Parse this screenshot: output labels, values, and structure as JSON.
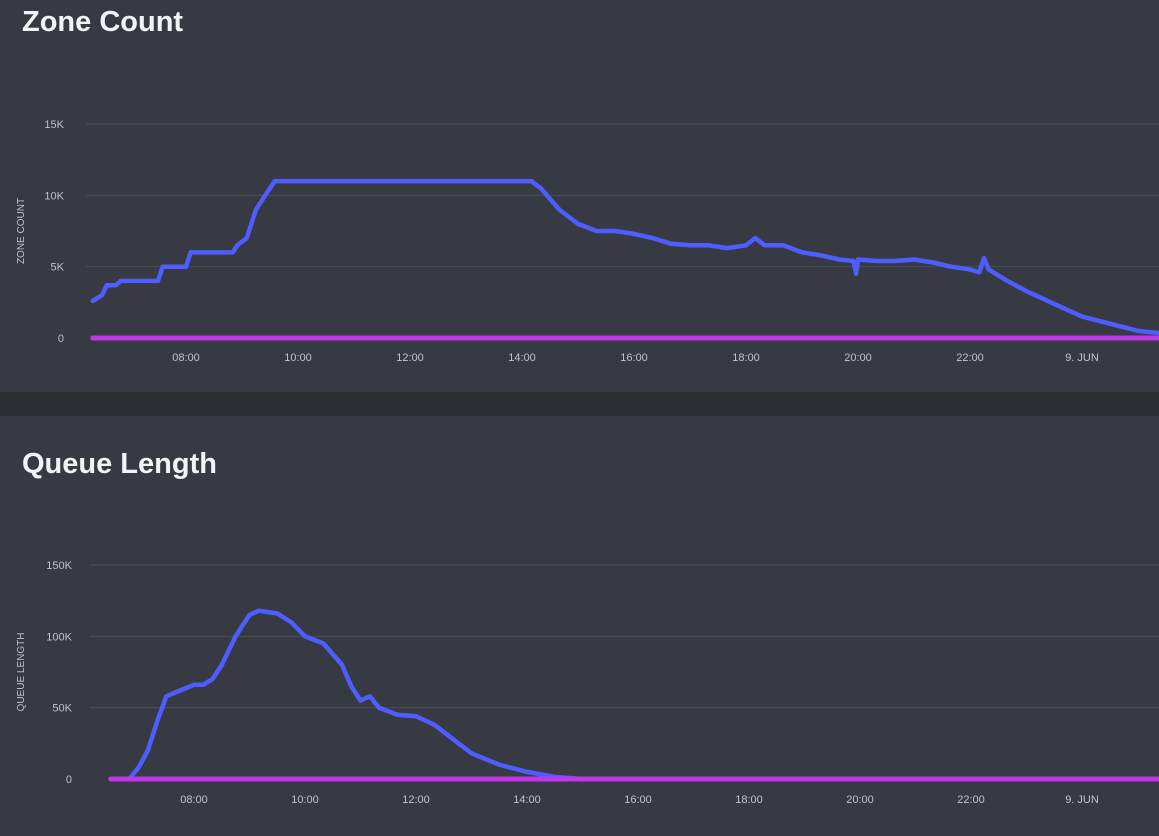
{
  "chart_data": [
    {
      "type": "line",
      "title": "Zone Count",
      "ylabel": "ZONE COUNT",
      "ylim": [
        0,
        15000
      ],
      "y_ticks": [
        "0",
        "5K",
        "10K",
        "15K"
      ],
      "x_ticks": [
        "08:00",
        "10:00",
        "12:00",
        "14:00",
        "16:00",
        "18:00",
        "20:00",
        "22:00",
        "9. JUN"
      ],
      "grid": true,
      "series": [
        {
          "color": "#4f5dff",
          "points": [
            [
              "06:20",
              2600
            ],
            [
              "06:30",
              3000
            ],
            [
              "06:35",
              3700
            ],
            [
              "06:45",
              3700
            ],
            [
              "06:50",
              4000
            ],
            [
              "07:30",
              4000
            ],
            [
              "07:35",
              5000
            ],
            [
              "08:00",
              5000
            ],
            [
              "08:05",
              6000
            ],
            [
              "08:50",
              6000
            ],
            [
              "08:55",
              6500
            ],
            [
              "09:05",
              7000
            ],
            [
              "09:15",
              9000
            ],
            [
              "09:25",
              10000
            ],
            [
              "09:35",
              11000
            ],
            [
              "14:10",
              11000
            ],
            [
              "14:20",
              10500
            ],
            [
              "14:40",
              9000
            ],
            [
              "15:00",
              8000
            ],
            [
              "15:20",
              7500
            ],
            [
              "15:40",
              7500
            ],
            [
              "16:00",
              7300
            ],
            [
              "16:20",
              7000
            ],
            [
              "16:40",
              6600
            ],
            [
              "17:00",
              6500
            ],
            [
              "17:20",
              6500
            ],
            [
              "17:40",
              6300
            ],
            [
              "18:00",
              6500
            ],
            [
              "18:10",
              7000
            ],
            [
              "18:20",
              6500
            ],
            [
              "18:40",
              6500
            ],
            [
              "19:00",
              6000
            ],
            [
              "19:20",
              5800
            ],
            [
              "19:40",
              5500
            ],
            [
              "19:55",
              5400
            ],
            [
              "19:58",
              4500
            ],
            [
              "20:00",
              5500
            ],
            [
              "20:20",
              5400
            ],
            [
              "20:40",
              5400
            ],
            [
              "21:00",
              5500
            ],
            [
              "21:20",
              5300
            ],
            [
              "21:40",
              5000
            ],
            [
              "22:00",
              4800
            ],
            [
              "22:10",
              4600
            ],
            [
              "22:15",
              5600
            ],
            [
              "22:20",
              4800
            ],
            [
              "22:40",
              4000
            ],
            [
              "23:00",
              3300
            ],
            [
              "23:30",
              2400
            ],
            [
              "24:00",
              1500
            ],
            [
              "24:30",
              1000
            ],
            [
              "25:00",
              500
            ],
            [
              "25:30",
              300
            ]
          ]
        },
        {
          "color": "#c036e8",
          "points": [
            [
              "06:20",
              0
            ],
            [
              "25:30",
              0
            ]
          ]
        }
      ]
    },
    {
      "type": "line",
      "title": "Queue Length",
      "ylabel": "QUEUE LENGTH",
      "ylim": [
        0,
        150000
      ],
      "y_ticks": [
        "0",
        "50K",
        "100K",
        "150K"
      ],
      "x_ticks": [
        "08:00",
        "10:00",
        "12:00",
        "14:00",
        "16:00",
        "18:00",
        "20:00",
        "22:00",
        "9. JUN"
      ],
      "grid": true,
      "series": [
        {
          "color": "#4f5dff",
          "points": [
            [
              "06:30",
              0
            ],
            [
              "06:50",
              0
            ],
            [
              "07:00",
              8000
            ],
            [
              "07:10",
              20000
            ],
            [
              "07:20",
              40000
            ],
            [
              "07:30",
              58000
            ],
            [
              "07:45",
              62000
            ],
            [
              "08:00",
              66000
            ],
            [
              "08:10",
              66000
            ],
            [
              "08:20",
              70000
            ],
            [
              "08:30",
              80000
            ],
            [
              "08:45",
              100000
            ],
            [
              "09:00",
              115000
            ],
            [
              "09:10",
              118000
            ],
            [
              "09:30",
              116000
            ],
            [
              "09:45",
              110000
            ],
            [
              "10:00",
              100000
            ],
            [
              "10:20",
              95000
            ],
            [
              "10:40",
              80000
            ],
            [
              "10:50",
              65000
            ],
            [
              "11:00",
              55000
            ],
            [
              "11:10",
              58000
            ],
            [
              "11:20",
              50000
            ],
            [
              "11:40",
              45000
            ],
            [
              "12:00",
              44000
            ],
            [
              "12:20",
              38000
            ],
            [
              "12:40",
              28000
            ],
            [
              "13:00",
              18000
            ],
            [
              "13:30",
              10000
            ],
            [
              "14:00",
              5000
            ],
            [
              "14:30",
              1500
            ],
            [
              "15:00",
              0
            ],
            [
              "25:30",
              0
            ]
          ]
        },
        {
          "color": "#c036e8",
          "points": [
            [
              "06:30",
              0
            ],
            [
              "25:30",
              0
            ]
          ]
        }
      ]
    }
  ]
}
